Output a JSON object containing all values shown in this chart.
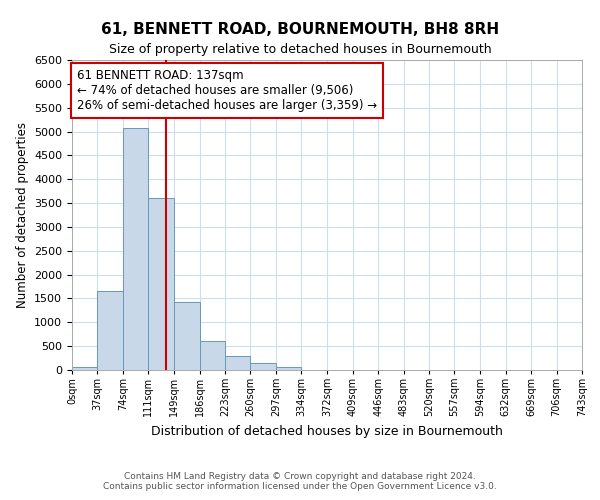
{
  "title": "61, BENNETT ROAD, BOURNEMOUTH, BH8 8RH",
  "subtitle": "Size of property relative to detached houses in Bournemouth",
  "xlabel": "Distribution of detached houses by size in Bournemouth",
  "ylabel": "Number of detached properties",
  "bin_edges": [
    0,
    37,
    74,
    111,
    149,
    186,
    223,
    260,
    297,
    334,
    372,
    409,
    446,
    483,
    520,
    557,
    594,
    632,
    669,
    706,
    743
  ],
  "bin_labels": [
    "0sqm",
    "37sqm",
    "74sqm",
    "111sqm",
    "149sqm",
    "186sqm",
    "223sqm",
    "260sqm",
    "297sqm",
    "334sqm",
    "372sqm",
    "409sqm",
    "446sqm",
    "483sqm",
    "520sqm",
    "557sqm",
    "594sqm",
    "632sqm",
    "669sqm",
    "706sqm",
    "743sqm"
  ],
  "counts": [
    60,
    1650,
    5080,
    3600,
    1430,
    610,
    300,
    150,
    60,
    10,
    5,
    5,
    0,
    0,
    0,
    0,
    0,
    0,
    0,
    0
  ],
  "bar_color": "#c8d8e8",
  "bar_edge_color": "#6699bb",
  "property_line_x": 137,
  "property_line_color": "#cc0000",
  "annotation_line1": "61 BENNETT ROAD: 137sqm",
  "annotation_line2": "← 74% of detached houses are smaller (9,506)",
  "annotation_line3": "26% of semi-detached houses are larger (3,359) →",
  "annotation_box_edge_color": "#cc0000",
  "ylim": [
    0,
    6500
  ],
  "yticks": [
    0,
    500,
    1000,
    1500,
    2000,
    2500,
    3000,
    3500,
    4000,
    4500,
    5000,
    5500,
    6000,
    6500
  ],
  "footer1": "Contains HM Land Registry data © Crown copyright and database right 2024.",
  "footer2": "Contains public sector information licensed under the Open Government Licence v3.0.",
  "bg_color": "#ffffff",
  "grid_color": "#ccddee"
}
